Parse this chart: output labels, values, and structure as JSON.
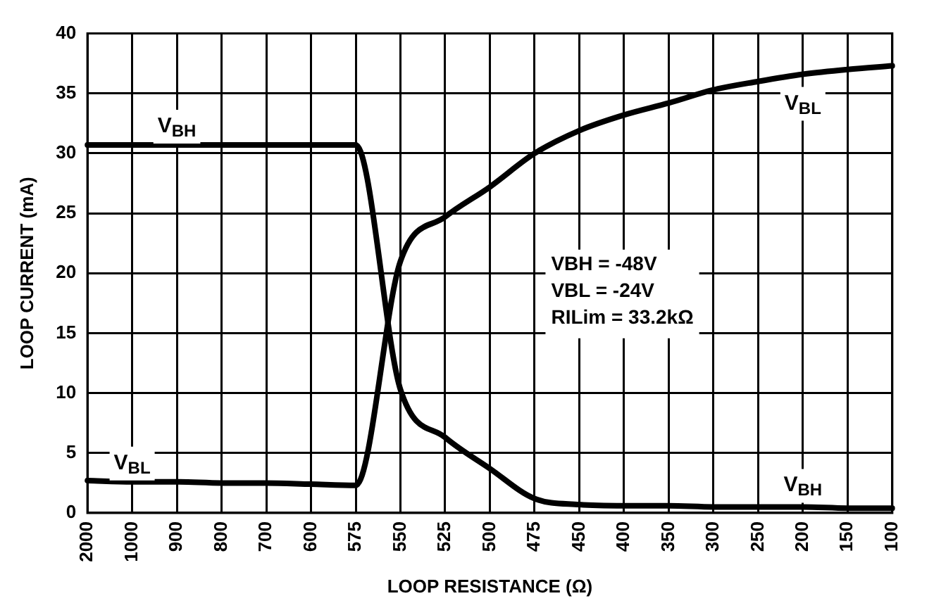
{
  "chart_data": {
    "type": "line",
    "xlabel": "LOOP RESISTANCE (Ω)",
    "ylabel": "LOOP CURRENT (mA)",
    "categories": [
      "2000",
      "1000",
      "900",
      "800",
      "700",
      "600",
      "575",
      "550",
      "525",
      "500",
      "475",
      "450",
      "400",
      "350",
      "300",
      "250",
      "200",
      "150",
      "100"
    ],
    "series": [
      {
        "name": "V$_{BH}$",
        "color": "#000000",
        "values": [
          30.7,
          30.7,
          30.7,
          30.7,
          30.7,
          30.7,
          30.7,
          10.3,
          6.3,
          3.7,
          1.2,
          0.7,
          0.6,
          0.6,
          0.5,
          0.5,
          0.5,
          0.4,
          0.4
        ]
      },
      {
        "name": "V$_{BL}$",
        "color": "#000000",
        "values": [
          2.7,
          2.6,
          2.6,
          2.5,
          2.5,
          2.4,
          2.3,
          21,
          24.7,
          27.2,
          30,
          31.9,
          33.2,
          34.2,
          35.3,
          36,
          36.6,
          37,
          37.3
        ]
      }
    ],
    "ylim": [
      0,
      40
    ],
    "yticks": [
      0,
      5,
      10,
      15,
      20,
      25,
      30,
      35,
      40
    ],
    "grid": true,
    "legend": false,
    "marker": "none",
    "line_style": "solid",
    "annotations": [
      "VBH = -48V",
      "VBL = -24V",
      "RILim = 33.2kΩ"
    ]
  }
}
